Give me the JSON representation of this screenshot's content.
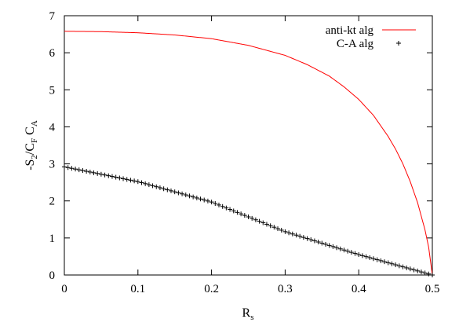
{
  "chart_data": {
    "type": "line",
    "title": "",
    "xlabel": {
      "main": "R",
      "sub": "s"
    },
    "ylabel": {
      "parts": [
        {
          "t": "-S",
          "sub": false
        },
        {
          "t": "2",
          "sub": true
        },
        {
          "t": "/C",
          "sub": false
        },
        {
          "t": "F",
          "sub": true
        },
        {
          "t": " C",
          "sub": false
        },
        {
          "t": "A",
          "sub": true
        }
      ]
    },
    "xlim": [
      0,
      0.5
    ],
    "ylim": [
      0,
      7
    ],
    "x_ticks": [
      0,
      0.1,
      0.2,
      0.3,
      0.4,
      0.5
    ],
    "x_tick_labels": [
      "0",
      "0.1",
      "0.2",
      "0.3",
      "0.4",
      "0.5"
    ],
    "y_ticks": [
      0,
      1,
      2,
      3,
      4,
      5,
      6,
      7
    ],
    "y_tick_labels": [
      "0",
      "1",
      "2",
      "3",
      "4",
      "5",
      "6",
      "7"
    ],
    "grid": false,
    "legend_position": "top-right",
    "series": [
      {
        "name": "anti-kt alg",
        "style": "line",
        "color": "#ff0000",
        "x": [
          0,
          0.05,
          0.1,
          0.15,
          0.2,
          0.25,
          0.3,
          0.33,
          0.36,
          0.38,
          0.4,
          0.42,
          0.44,
          0.45,
          0.46,
          0.47,
          0.48,
          0.49,
          0.495,
          0.5
        ],
        "y": [
          6.58,
          6.57,
          6.54,
          6.48,
          6.38,
          6.2,
          5.93,
          5.68,
          5.37,
          5.08,
          4.74,
          4.31,
          3.74,
          3.4,
          3.0,
          2.52,
          1.95,
          1.22,
          0.75,
          0
        ]
      },
      {
        "name": "C-A alg",
        "style": "points",
        "marker": "+",
        "color": "#000000",
        "x": [
          0,
          0.1,
          0.2,
          0.3,
          0.4,
          0.5
        ],
        "y": [
          2.92,
          2.52,
          1.97,
          1.17,
          0.55,
          0
        ]
      }
    ]
  }
}
